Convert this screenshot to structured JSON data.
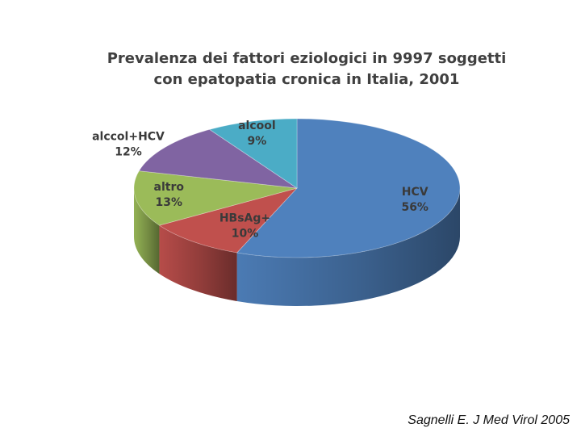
{
  "chart_data": {
    "type": "pie",
    "style": "3d",
    "title_lines": [
      "Prevalenza dei fattori eziologici in 9997 soggetti",
      "con epatopatia cronica in Italia, 2001"
    ],
    "slices": [
      {
        "label": "HCV",
        "value": 56,
        "value_label": "56%",
        "color": "#4F81BD"
      },
      {
        "label": "HBsAg+",
        "value": 10,
        "value_label": "10%",
        "color": "#C0504D"
      },
      {
        "label": "altro",
        "value": 13,
        "value_label": "13%",
        "color": "#9BBB59"
      },
      {
        "label": "alccol+HCV",
        "value": 12,
        "value_label": "12%",
        "color": "#8064A2"
      },
      {
        "label": "alcool",
        "value": 9,
        "value_label": "9%",
        "color": "#4BACC6"
      }
    ]
  },
  "citation": "Sagnelli E. J Med Virol 2005"
}
